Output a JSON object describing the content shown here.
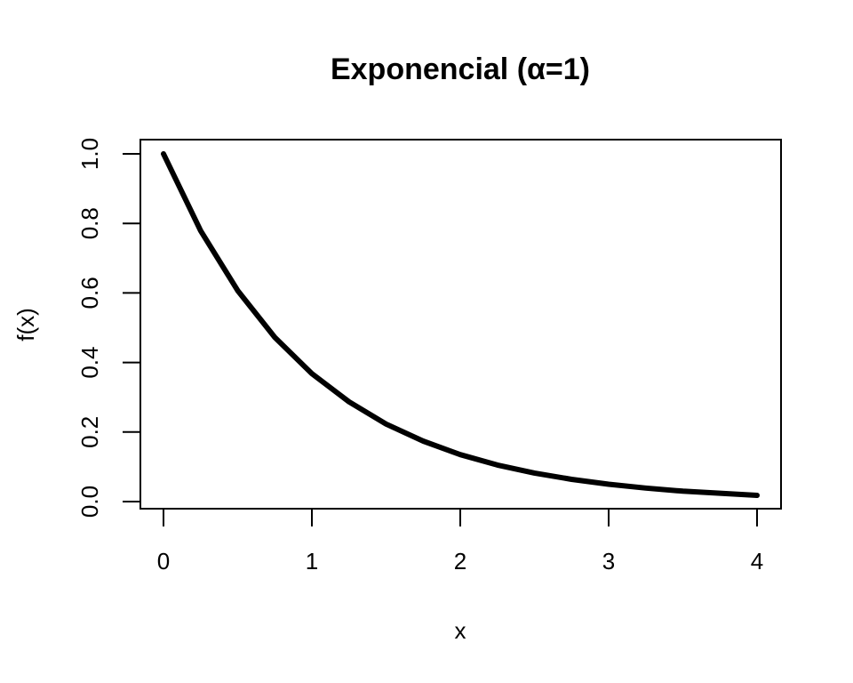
{
  "chart_data": {
    "type": "line",
    "title": "Exponencial (α=1)",
    "xlabel": "x",
    "ylabel": "f(x)",
    "xlim": [
      0,
      4
    ],
    "ylim": [
      0,
      1
    ],
    "x_ticks": [
      0,
      1,
      2,
      3,
      4
    ],
    "x_tick_labels": [
      "0",
      "1",
      "2",
      "3",
      "4"
    ],
    "y_ticks": [
      0.0,
      0.2,
      0.4,
      0.6,
      0.8,
      1.0
    ],
    "y_tick_labels": [
      "0.0",
      "0.2",
      "0.4",
      "0.6",
      "0.8",
      "1.0"
    ],
    "grid": false,
    "legend": "none",
    "series": [
      {
        "color": "#000000",
        "x": [
          0,
          0.25,
          0.5,
          0.75,
          1,
          1.25,
          1.5,
          1.75,
          2,
          2.25,
          2.5,
          2.75,
          3,
          3.25,
          3.5,
          3.75,
          4
        ],
        "y": [
          1.0,
          0.779,
          0.607,
          0.472,
          0.368,
          0.287,
          0.223,
          0.174,
          0.135,
          0.105,
          0.082,
          0.064,
          0.05,
          0.039,
          0.03,
          0.024,
          0.018
        ]
      }
    ]
  }
}
